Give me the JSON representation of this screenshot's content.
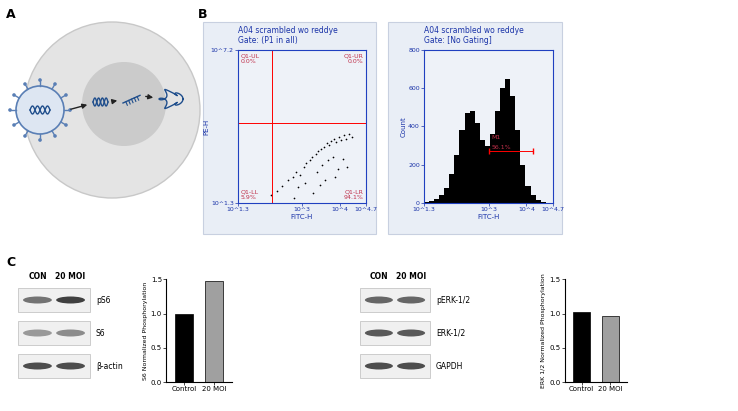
{
  "panel_labels": [
    "A",
    "B",
    "C"
  ],
  "flow_cytometry": [
    {
      "type": "scatter",
      "title": "A04 scrambled wo reddye",
      "subtitle": "Gate: (P1 in all)",
      "x_label": "FITC-H",
      "y_label": "PE-H",
      "log": true,
      "color": "#000000",
      "x": [
        150,
        220,
        300,
        420,
        560,
        700,
        900,
        1100,
        1300,
        1600,
        1900,
        2300,
        2700,
        3200,
        3800,
        4500,
        5200,
        6000,
        7000,
        8200,
        9500,
        11000,
        13000,
        15000,
        18000,
        21000,
        2500,
        3500,
        5000,
        6500,
        800,
        1200,
        4000,
        9000,
        12000,
        600,
        2000,
        3000,
        7500,
        16000
      ],
      "y": [
        40,
        60,
        90,
        150,
        200,
        300,
        250,
        500,
        700,
        900,
        1200,
        1500,
        2000,
        2500,
        3000,
        4000,
        3500,
        5000,
        6000,
        4500,
        7000,
        5500,
        8000,
        6000,
        9000,
        7000,
        300,
        600,
        900,
        1200,
        80,
        120,
        150,
        400,
        1000,
        30,
        50,
        100,
        200,
        500
      ],
      "xlim": [
        19.95,
        50119
      ],
      "ylim": [
        19.95,
        15848932
      ],
      "xticks": [
        {
          "value": 19.95,
          "label": "10^1.3"
        },
        {
          "value": 1000,
          "label": "10^3"
        },
        {
          "value": 10000,
          "label": "10^4"
        },
        {
          "value": 50119,
          "label": "10^4.7"
        }
      ],
      "yticks": [
        {
          "value": 19.95,
          "label": "10^1.3"
        },
        {
          "value": 15848932,
          "label": "10^7.2"
        }
      ],
      "quadrants": {
        "x": 160,
        "y": 25000,
        "labels": [
          {
            "name": "Q1-UL",
            "value": 0.0,
            "label": "0.0%"
          },
          {
            "name": "Q1-UR",
            "value": 0.0,
            "label": "0.0%"
          },
          {
            "name": "Q1-LL",
            "value": 5.9,
            "label": "5.9%"
          },
          {
            "name": "Q1-LR",
            "value": 94.1,
            "label": "94.1%"
          }
        ]
      }
    },
    {
      "type": "histogram",
      "title": "A04 scrambled wo reddye",
      "subtitle": "Gate: [No Gating]",
      "x_label": "FITC-H",
      "y_label": "Count",
      "log": "x",
      "color": "#000000",
      "bins": [
        20,
        27,
        37,
        50,
        68,
        93,
        126,
        172,
        234,
        318,
        433,
        589,
        801,
        1090,
        1483,
        2017,
        2745,
        3734,
        5081,
        6913,
        9406,
        12797,
        17411,
        23689,
        32231,
        43853
      ],
      "counts": [
        5,
        10,
        20,
        40,
        80,
        150,
        250,
        380,
        470,
        480,
        420,
        330,
        300,
        360,
        480,
        600,
        650,
        560,
        380,
        200,
        90,
        40,
        15,
        5,
        2
      ],
      "xlim": [
        19.95,
        50119
      ],
      "ylim": [
        0,
        800
      ],
      "xticks": [
        {
          "value": 19.95,
          "label": "10^1.3"
        },
        {
          "value": 1000,
          "label": "10^3"
        },
        {
          "value": 10000,
          "label": "10^4"
        },
        {
          "value": 50119,
          "label": "10^4.7"
        }
      ],
      "yticks": [
        0,
        200,
        400,
        600,
        800
      ],
      "gate": {
        "name": "M1",
        "value": 56.1,
        "label": "56.1%",
        "range": [
          1000,
          15000
        ],
        "level": 270
      }
    }
  ],
  "blots": [
    {
      "lanes": [
        "CON",
        "20 MOI"
      ],
      "rows": [
        "pS6",
        "S6",
        "β-actin"
      ]
    },
    {
      "lanes": [
        "CON",
        "20 MOI"
      ],
      "rows": [
        "pERK-1/2",
        "ERK-1/2",
        "GAPDH"
      ]
    }
  ],
  "chart_data": [
    {
      "type": "bar",
      "y_label": "S6 Normalized Phosphorylation",
      "categories": [
        "Control",
        "20 MOI"
      ],
      "values": [
        1.0,
        1.48
      ],
      "colors": [
        "#000000",
        "#a0a0a0"
      ],
      "ylim": [
        0,
        1.5
      ],
      "yticks": [
        {
          "value": 0,
          "label": "0.0"
        },
        {
          "value": 0.5,
          "label": "0.5"
        },
        {
          "value": 1.0,
          "label": "1.0"
        },
        {
          "value": 1.5,
          "label": "1.5"
        }
      ]
    },
    {
      "type": "bar",
      "y_label": "ERK 1/2 Normalized Phosphorylation",
      "categories": [
        "Control",
        "20 MOI"
      ],
      "values": [
        1.02,
        0.96
      ],
      "colors": [
        "#000000",
        "#a0a0a0"
      ],
      "ylim": [
        0,
        1.5
      ],
      "yticks": [
        {
          "value": 0,
          "label": "0.0"
        },
        {
          "value": 0.5,
          "label": "0.5"
        },
        {
          "value": 1.0,
          "label": "1.0"
        },
        {
          "value": 1.5,
          "label": "1.5"
        }
      ]
    }
  ]
}
